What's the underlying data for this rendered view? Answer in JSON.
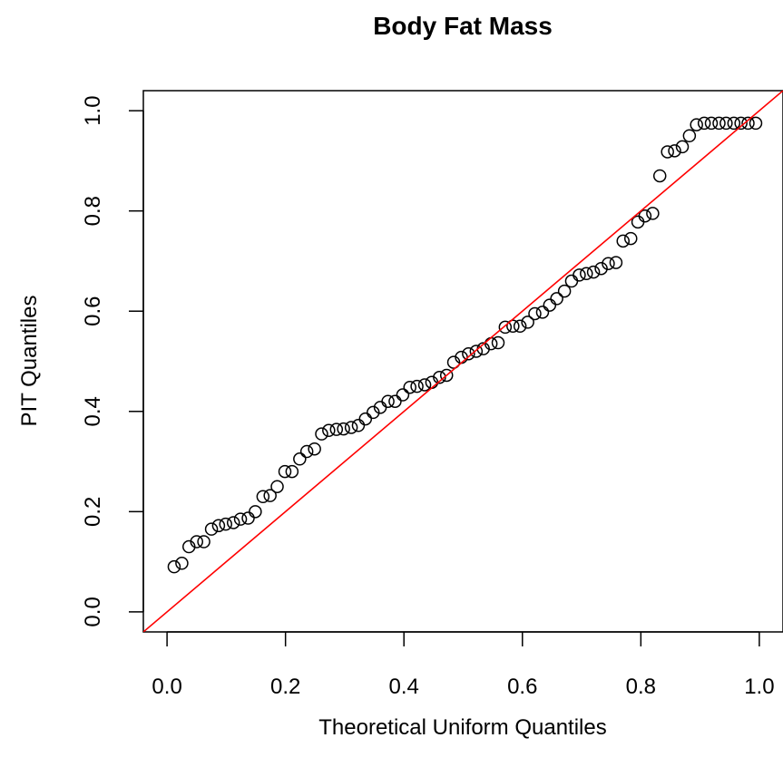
{
  "chart_data": {
    "type": "scatter",
    "title": "Body Fat Mass",
    "xlabel": "Theoretical Uniform Quantiles",
    "ylabel": "PIT Quantiles",
    "xlim": [
      -0.04,
      1.04
    ],
    "ylim": [
      -0.04,
      1.04
    ],
    "xticks": [
      0.0,
      0.2,
      0.4,
      0.6,
      0.8,
      1.0
    ],
    "yticks": [
      0.0,
      0.2,
      0.4,
      0.6,
      0.8,
      1.0
    ],
    "xtick_labels": [
      "0.0",
      "0.2",
      "0.4",
      "0.6",
      "0.8",
      "1.0"
    ],
    "ytick_labels": [
      "0.0",
      "0.2",
      "0.4",
      "0.6",
      "0.8",
      "1.0"
    ],
    "reference_line": {
      "intercept": 0,
      "slope": 1,
      "color": "#ff0000"
    },
    "point_color": "#000000",
    "grid": false,
    "legend": "none",
    "series": [
      {
        "x": [
          0.012,
          0.025,
          0.037,
          0.05,
          0.062,
          0.075,
          0.087,
          0.099,
          0.112,
          0.124,
          0.137,
          0.149,
          0.162,
          0.174,
          0.186,
          0.199,
          0.211,
          0.224,
          0.236,
          0.249,
          0.261,
          0.273,
          0.286,
          0.298,
          0.311,
          0.323,
          0.335,
          0.348,
          0.36,
          0.373,
          0.385,
          0.398,
          0.41,
          0.422,
          0.435,
          0.447,
          0.46,
          0.472,
          0.484,
          0.497,
          0.509,
          0.522,
          0.534,
          0.547,
          0.559,
          0.571,
          0.584,
          0.596,
          0.609,
          0.621,
          0.634,
          0.646,
          0.658,
          0.671,
          0.683,
          0.696,
          0.708,
          0.72,
          0.733,
          0.745,
          0.758,
          0.77,
          0.783,
          0.795,
          0.807,
          0.82,
          0.832,
          0.845,
          0.857,
          0.87,
          0.882,
          0.894,
          0.907,
          0.919,
          0.932,
          0.944,
          0.957,
          0.969,
          0.981,
          0.994
        ],
        "y": [
          0.09,
          0.097,
          0.13,
          0.14,
          0.14,
          0.165,
          0.172,
          0.175,
          0.178,
          0.185,
          0.187,
          0.2,
          0.23,
          0.232,
          0.25,
          0.28,
          0.28,
          0.305,
          0.32,
          0.325,
          0.355,
          0.362,
          0.364,
          0.365,
          0.368,
          0.372,
          0.385,
          0.398,
          0.408,
          0.42,
          0.42,
          0.433,
          0.448,
          0.45,
          0.453,
          0.458,
          0.468,
          0.472,
          0.498,
          0.508,
          0.515,
          0.52,
          0.525,
          0.535,
          0.537,
          0.568,
          0.57,
          0.57,
          0.578,
          0.595,
          0.598,
          0.612,
          0.625,
          0.64,
          0.66,
          0.672,
          0.675,
          0.678,
          0.685,
          0.695,
          0.697,
          0.74,
          0.745,
          0.778,
          0.79,
          0.795,
          0.87,
          0.918,
          0.92,
          0.928,
          0.95,
          0.972,
          0.975,
          0.975,
          0.975,
          0.975,
          0.975,
          0.975,
          0.975,
          0.975
        ]
      }
    ]
  }
}
